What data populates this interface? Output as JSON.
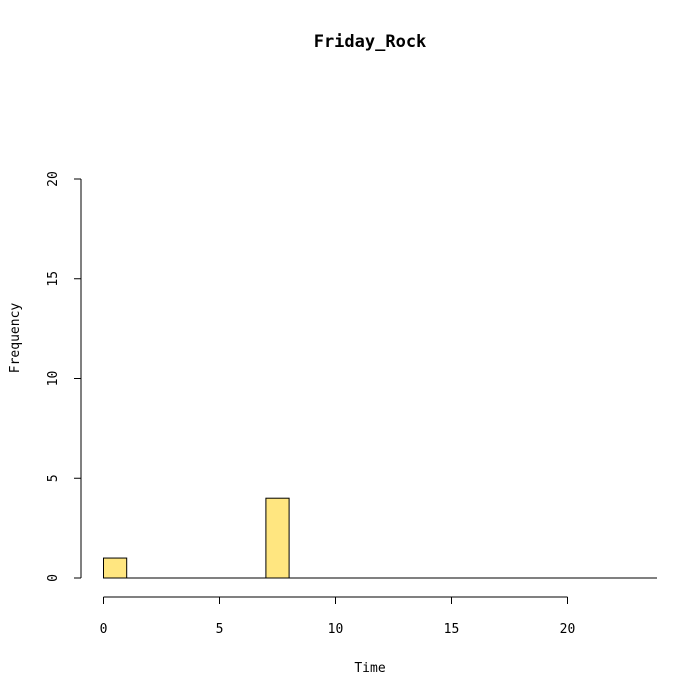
{
  "chart_data": {
    "type": "bar",
    "title": "Friday_Rock",
    "xlabel": "Time",
    "ylabel": "Frequency",
    "xlim": [
      0,
      24
    ],
    "ylim": [
      0,
      20
    ],
    "bin_width": 1,
    "x_ticks": [
      0,
      5,
      10,
      15,
      20
    ],
    "y_ticks": [
      0,
      5,
      10,
      15,
      20
    ],
    "bins": [
      {
        "x0": 0,
        "x1": 1,
        "count": 1
      },
      {
        "x0": 1,
        "x1": 2,
        "count": 0
      },
      {
        "x0": 2,
        "x1": 3,
        "count": 0
      },
      {
        "x0": 3,
        "x1": 4,
        "count": 0
      },
      {
        "x0": 4,
        "x1": 5,
        "count": 0
      },
      {
        "x0": 5,
        "x1": 6,
        "count": 0
      },
      {
        "x0": 6,
        "x1": 7,
        "count": 0
      },
      {
        "x0": 7,
        "x1": 8,
        "count": 4
      },
      {
        "x0": 8,
        "x1": 9,
        "count": 0
      },
      {
        "x0": 9,
        "x1": 10,
        "count": 0
      },
      {
        "x0": 10,
        "x1": 11,
        "count": 0
      },
      {
        "x0": 11,
        "x1": 12,
        "count": 0
      },
      {
        "x0": 12,
        "x1": 13,
        "count": 0
      },
      {
        "x0": 13,
        "x1": 14,
        "count": 0
      },
      {
        "x0": 14,
        "x1": 15,
        "count": 0
      },
      {
        "x0": 15,
        "x1": 16,
        "count": 0
      },
      {
        "x0": 16,
        "x1": 17,
        "count": 0
      },
      {
        "x0": 17,
        "x1": 18,
        "count": 0
      },
      {
        "x0": 18,
        "x1": 19,
        "count": 0
      },
      {
        "x0": 19,
        "x1": 20,
        "count": 0
      },
      {
        "x0": 20,
        "x1": 21,
        "count": 0
      },
      {
        "x0": 21,
        "x1": 22,
        "count": 0
      },
      {
        "x0": 22,
        "x1": 23,
        "count": 0
      },
      {
        "x0": 23,
        "x1": 24,
        "count": 0
      }
    ],
    "bar_color": "#ffe680",
    "grid": false,
    "legend": "none"
  }
}
